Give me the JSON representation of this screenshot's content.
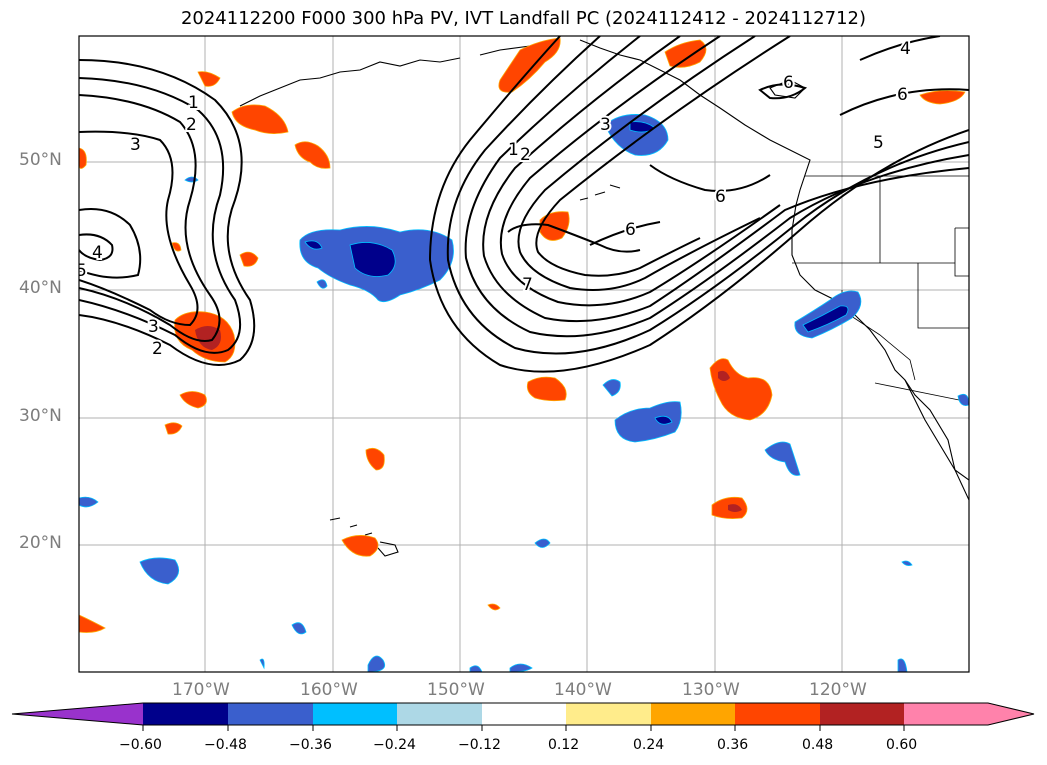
{
  "title": "2024112200 F000 300 hPa PV, IVT Landfall PC (2024112412 - 2024112712)",
  "map": {
    "lat_labels": [
      "50°N",
      "40°N",
      "30°N",
      "20°N"
    ],
    "lon_labels": [
      "170°W",
      "160°W",
      "150°W",
      "140°W",
      "130°W",
      "120°W"
    ],
    "pv_contour_labels": [
      "1",
      "2",
      "3",
      "4",
      "5",
      "1",
      "2",
      "3",
      "4",
      "6",
      "4",
      "6",
      "6",
      "5",
      "6",
      "7",
      "3",
      "2"
    ]
  },
  "colorbar": {
    "ticks": [
      "−0.60",
      "−0.48",
      "−0.36",
      "−0.24",
      "−0.12",
      "0.12",
      "0.24",
      "0.36",
      "0.48",
      "0.60"
    ],
    "colors": [
      "#9932cc",
      "#00008b",
      "#3a5fcd",
      "#00bfff",
      "#add8e6",
      "#ffffff",
      "#ffec8b",
      "#ffa500",
      "#ff4500",
      "#b22222",
      "#ff82ab",
      "#ff82ab"
    ]
  }
}
